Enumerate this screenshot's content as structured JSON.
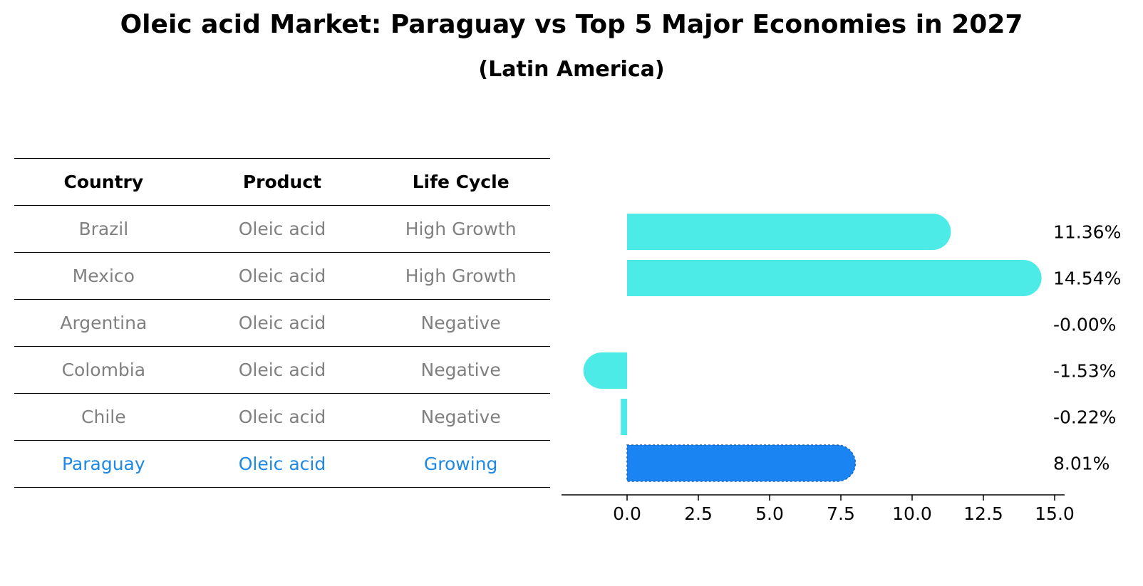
{
  "title": "Oleic acid Market: Paraguay vs Top 5 Major Economies in 2027",
  "subtitle": "(Latin America)",
  "table": {
    "headers": [
      "Country",
      "Product",
      "Life Cycle"
    ],
    "rows": [
      [
        "Brazil",
        "Oleic acid",
        "High Growth"
      ],
      [
        "Mexico",
        "Oleic acid",
        "High Growth"
      ],
      [
        "Argentina",
        "Oleic acid",
        "Negative"
      ],
      [
        "Colombia",
        "Oleic acid",
        "Negative"
      ],
      [
        "Chile",
        "Oleic acid",
        "Negative"
      ],
      [
        "Paraguay",
        "Oleic acid",
        "Growing"
      ]
    ],
    "highlight_row": 5
  },
  "colors": {
    "bar": "#4DEBE8",
    "highlight": "#1A85F2",
    "highlight_text": "#1E88E5",
    "muted_text": "#808080"
  },
  "chart_data": {
    "type": "bar",
    "orientation": "horizontal",
    "categories": [
      "Brazil",
      "Mexico",
      "Argentina",
      "Colombia",
      "Chile",
      "Paraguay"
    ],
    "values": [
      11.36,
      14.54,
      -0.0,
      -1.53,
      -0.22,
      8.01
    ],
    "value_labels": [
      "11.36%",
      "14.54%",
      "-0.00%",
      "-1.53%",
      "-0.22%",
      "8.01%"
    ],
    "highlight_category": "Paraguay",
    "xlim": [
      -2.3,
      15.2
    ],
    "xticks": [
      0.0,
      2.5,
      5.0,
      7.5,
      10.0,
      12.5,
      15.0
    ],
    "xtick_labels": [
      "0.0",
      "2.5",
      "5.0",
      "7.5",
      "10.0",
      "12.5",
      "15.0"
    ],
    "grid": false
  }
}
